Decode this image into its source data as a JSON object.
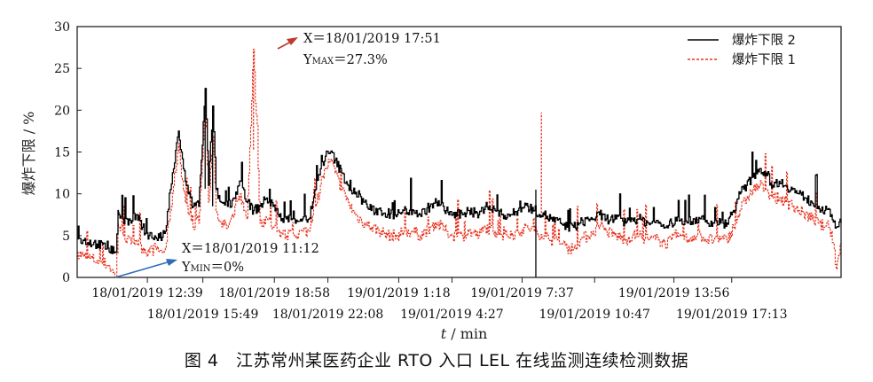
{
  "caption": "图 4　江苏常州某医药企业 RTO 入口 LEL 在线监测连续检测数据",
  "chart_data": {
    "type": "line",
    "ylabel": "爆炸下限 / %",
    "xlabel_italic": "t",
    "xlabel_rest": " / min",
    "ylim": [
      0,
      30
    ],
    "y_ticks": [
      0,
      5,
      10,
      15,
      20,
      25,
      30
    ],
    "x_range_min": [
      0,
      2340
    ],
    "x_ticks_upper": [
      {
        "x": 215,
        "label": "18/01/2019 12:39"
      },
      {
        "x": 604,
        "label": "18/01/2019 18:58"
      },
      {
        "x": 985,
        "label": "19/01/2019 1:18"
      },
      {
        "x": 1363,
        "label": "19/01/2019 7:37"
      },
      {
        "x": 1828,
        "label": "19/01/2019 13:56"
      }
    ],
    "x_ticks_lower": [
      {
        "x": 385,
        "label": "18/01/2019 15:49"
      },
      {
        "x": 768,
        "label": "18/01/2019 22:08"
      },
      {
        "x": 1148,
        "label": "19/01/2019 4:27"
      },
      {
        "x": 1585,
        "label": "19/01/2019 10:47"
      },
      {
        "x": 2005,
        "label": "19/01/2019 17:13"
      }
    ],
    "series": [
      {
        "name": "爆炸下限 2",
        "color": "#000000",
        "style": "solid",
        "x": [
          0,
          20,
          60,
          95,
          118,
          125,
          128,
          140,
          165,
          180,
          200,
          220,
          240,
          260,
          270,
          285,
          295,
          310,
          325,
          340,
          355,
          365,
          372,
          380,
          392,
          402,
          415,
          425,
          440,
          460,
          480,
          500,
          510,
          520,
          540,
          560,
          580,
          600,
          615,
          640,
          665,
          690,
          710,
          730,
          745,
          760,
          775,
          790,
          810,
          830,
          850,
          880,
          900,
          930,
          950,
          980,
          1000,
          1030,
          1050,
          1080,
          1100,
          1130,
          1150,
          1180,
          1200,
          1230,
          1250,
          1280,
          1300,
          1330,
          1350,
          1380,
          1400,
          1430,
          1450,
          1480,
          1500,
          1520,
          1540,
          1565,
          1580,
          1600,
          1620,
          1650,
          1680,
          1700,
          1720,
          1750,
          1780,
          1800,
          1820,
          1850,
          1870,
          1890,
          1910,
          1930,
          1950,
          1970,
          1990,
          2010,
          2030,
          2050,
          2070,
          2090,
          2110,
          2130,
          2150,
          2170,
          2190,
          2210,
          2230,
          2250,
          2270,
          2290,
          2310,
          2325,
          2340
        ],
        "y": [
          4.6,
          4.4,
          4.0,
          3.5,
          3.0,
          8.0,
          7.5,
          7.0,
          6.5,
          7.5,
          6.0,
          5.0,
          4.8,
          4.8,
          5.5,
          10.5,
          13.0,
          17.5,
          13.0,
          10.0,
          8.5,
          9.0,
          8.5,
          14.0,
          22.6,
          11.0,
          20.5,
          10.5,
          9.0,
          8.5,
          9.5,
          11.5,
          10.5,
          9.0,
          8.0,
          8.5,
          9.5,
          8.5,
          7.5,
          7.0,
          7.0,
          7.0,
          7.0,
          10.5,
          13.0,
          14.5,
          15.0,
          14.0,
          12.5,
          11.0,
          10.0,
          9.0,
          8.0,
          8.0,
          7.5,
          7.5,
          8.0,
          8.0,
          7.5,
          8.5,
          9.0,
          8.0,
          7.5,
          7.5,
          8.0,
          7.5,
          8.5,
          8.0,
          7.5,
          7.5,
          8.0,
          8.5,
          8.0,
          7.5,
          7.0,
          6.5,
          6.0,
          6.0,
          6.5,
          7.0,
          7.0,
          7.5,
          7.0,
          7.0,
          6.5,
          7.0,
          7.0,
          6.5,
          6.5,
          6.0,
          6.5,
          7.0,
          6.5,
          7.0,
          7.0,
          6.5,
          6.5,
          6.5,
          6.5,
          8.0,
          10.0,
          11.0,
          12.0,
          13.0,
          12.5,
          11.0,
          11.5,
          11.0,
          10.5,
          10.0,
          9.5,
          9.0,
          8.5,
          8.0,
          7.5,
          6.0,
          6.5
        ]
      },
      {
        "name": "爆炸下限 1",
        "color": "#e8321e",
        "style": "dashed",
        "x": [
          0,
          20,
          60,
          95,
          118,
          125,
          128,
          140,
          165,
          180,
          200,
          220,
          240,
          260,
          270,
          285,
          295,
          310,
          325,
          340,
          355,
          365,
          372,
          380,
          392,
          402,
          415,
          425,
          440,
          460,
          480,
          500,
          510,
          520,
          540,
          560,
          580,
          600,
          615,
          640,
          665,
          690,
          710,
          730,
          745,
          760,
          775,
          790,
          810,
          830,
          850,
          880,
          900,
          930,
          950,
          980,
          1000,
          1030,
          1050,
          1080,
          1100,
          1130,
          1150,
          1180,
          1200,
          1230,
          1250,
          1280,
          1300,
          1330,
          1350,
          1380,
          1400,
          1430,
          1450,
          1480,
          1500,
          1520,
          1540,
          1565,
          1580,
          1600,
          1620,
          1650,
          1680,
          1700,
          1720,
          1750,
          1780,
          1800,
          1820,
          1850,
          1870,
          1890,
          1910,
          1930,
          1950,
          1970,
          1990,
          2010,
          2030,
          2050,
          2070,
          2090,
          2110,
          2130,
          2150,
          2170,
          2190,
          2210,
          2230,
          2250,
          2270,
          2290,
          2310,
          2325,
          2340
        ],
        "y": [
          3.0,
          2.5,
          2.0,
          1.5,
          0.0,
          6.5,
          6.0,
          5.0,
          4.0,
          4.5,
          3.5,
          3.0,
          3.5,
          3.0,
          3.5,
          8.0,
          11.0,
          16.0,
          10.5,
          7.5,
          6.0,
          7.0,
          6.5,
          12.0,
          21.0,
          9.0,
          17.0,
          8.0,
          6.5,
          6.0,
          7.5,
          10.0,
          8.0,
          7.0,
          27.3,
          6.5,
          7.0,
          6.0,
          5.5,
          5.0,
          5.0,
          5.5,
          5.5,
          8.5,
          11.0,
          13.0,
          14.0,
          12.5,
          10.5,
          9.0,
          7.5,
          6.5,
          6.0,
          5.5,
          5.0,
          5.0,
          5.5,
          5.5,
          5.0,
          6.0,
          6.5,
          5.5,
          5.0,
          5.0,
          5.5,
          5.0,
          6.0,
          5.5,
          5.0,
          5.0,
          5.5,
          6.0,
          5.5,
          5.0,
          4.5,
          4.0,
          3.5,
          3.5,
          4.5,
          5.0,
          5.5,
          6.0,
          5.5,
          5.0,
          4.5,
          5.0,
          5.0,
          4.5,
          4.5,
          4.0,
          4.5,
          5.0,
          4.5,
          5.0,
          5.0,
          4.5,
          4.5,
          4.5,
          4.5,
          6.0,
          8.0,
          9.5,
          10.5,
          11.0,
          10.5,
          9.5,
          9.5,
          9.0,
          8.5,
          8.0,
          7.5,
          7.0,
          6.5,
          6.0,
          5.5,
          1.0,
          4.5
        ]
      }
    ],
    "spikes": [
      {
        "series": 0,
        "x": 392,
        "y": 22.6
      },
      {
        "series": 0,
        "x": 415,
        "y": 20.5
      },
      {
        "series": 0,
        "x": 1405,
        "y": 10.5
      },
      {
        "series": 1,
        "x": 540,
        "y": 27.3
      },
      {
        "series": 1,
        "x": 1422,
        "y": 19.7
      }
    ],
    "annotations": [
      {
        "name": "max-annotation",
        "line1": "X＝18/01/2019 17:51",
        "line2_prefix": "Y",
        "line2_sub": "MAX",
        "line2_suffix": "＝27.3%",
        "arrow_color": "#c0392b"
      },
      {
        "name": "min-annotation",
        "line1": "X＝18/01/2019 11:12",
        "line2_prefix": "Y",
        "line2_sub": "MIN",
        "line2_suffix": "＝0%",
        "arrow_color": "#2e6db4"
      }
    ],
    "legend_position": "top-right"
  }
}
